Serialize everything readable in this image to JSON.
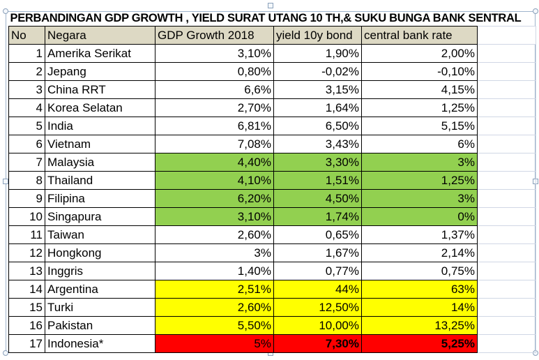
{
  "title": "PERBANDINGAN GDP GROWTH , YIELD SURAT UTANG 10 TH,& SUKU BUNGA BANK SENTRAL",
  "headers": [
    "No",
    "Negara",
    "GDP Growth 2018",
    "yield 10y bond",
    "central bank rate"
  ],
  "colors": {
    "header": "#ddd9c4",
    "green": "#92d050",
    "yellow": "#ffff00",
    "red": "#ff0000"
  },
  "rows": [
    {
      "no": "1",
      "country": "Amerika Serikat",
      "gdp": "3,10%",
      "yield": "1,90%",
      "rate": "2,00%",
      "hl": ""
    },
    {
      "no": "2",
      "country": "Jepang",
      "gdp": "0,80%",
      "yield": "-0,02%",
      "rate": "-0,10%",
      "hl": ""
    },
    {
      "no": "3",
      "country": "China RRT",
      "gdp": "6,6%",
      "yield": "3,15%",
      "rate": "4,15%",
      "hl": ""
    },
    {
      "no": "4",
      "country": "Korea Selatan",
      "gdp": "2,70%",
      "yield": "1,64%",
      "rate": "1,25%",
      "hl": ""
    },
    {
      "no": "5",
      "country": "India",
      "gdp": "6,81%",
      "yield": "6,50%",
      "rate": "5,15%",
      "hl": ""
    },
    {
      "no": "6",
      "country": "Vietnam",
      "gdp": "7,08%",
      "yield": "3,43%",
      "rate": "6%",
      "hl": ""
    },
    {
      "no": "7",
      "country": "Malaysia",
      "gdp": "4,40%",
      "yield": "3,30%",
      "rate": "3%",
      "hl": "green"
    },
    {
      "no": "8",
      "country": "Thailand",
      "gdp": "4,10%",
      "yield": "1,51%",
      "rate": "1,25%",
      "hl": "green"
    },
    {
      "no": "9",
      "country": "Filipina",
      "gdp": "6,20%",
      "yield": "4,50%",
      "rate": "3%",
      "hl": "green"
    },
    {
      "no": "10",
      "country": "Singapura",
      "gdp": "3,10%",
      "yield": "1,74%",
      "rate": "0%",
      "hl": "green"
    },
    {
      "no": "11",
      "country": "Taiwan",
      "gdp": "2,60%",
      "yield": "0,65%",
      "rate": "1,37%",
      "hl": ""
    },
    {
      "no": "12",
      "country": "Hongkong",
      "gdp": "3%",
      "yield": "1,67%",
      "rate": "2,14%",
      "hl": ""
    },
    {
      "no": "13",
      "country": "Inggris",
      "gdp": "1,40%",
      "yield": "0,77%",
      "rate": "0,75%",
      "hl": ""
    },
    {
      "no": "14",
      "country": "Argentina",
      "gdp": "2,51%",
      "yield": "44%",
      "rate": "63%",
      "hl": "yellow"
    },
    {
      "no": "15",
      "country": "Turki",
      "gdp": "2,60%",
      "yield": "12,50%",
      "rate": "14%",
      "hl": "yellow"
    },
    {
      "no": "16",
      "country": "Pakistan",
      "gdp": "5,50%",
      "yield": "10,00%",
      "rate": "13,25%",
      "hl": "yellow"
    },
    {
      "no": "17",
      "country": "Indonesia*",
      "gdp": "5%",
      "yield": "7,30%",
      "rate": "5,25%",
      "hl": "red"
    }
  ]
}
